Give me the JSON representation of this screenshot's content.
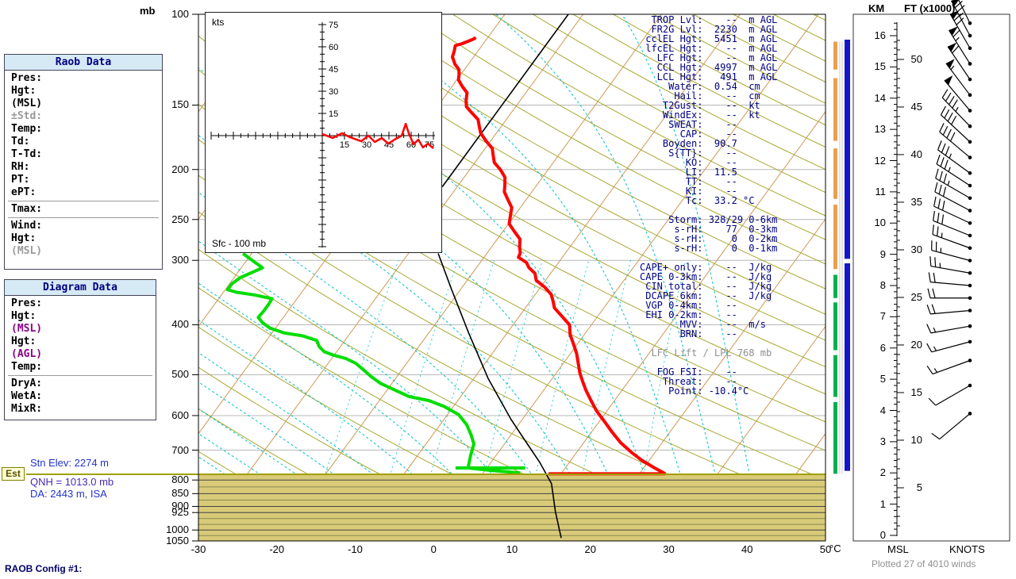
{
  "app": {
    "config_label": "RAOB Config #1:"
  },
  "colors": {
    "temp_trace": "#ff0000",
    "dewpoint_trace": "#00dd00",
    "parcel": "#000000",
    "isotherm": "#cc9955",
    "dry_adiabat": "#a8a832",
    "moist_adiabat": "#00c2c2",
    "grid": "#b8b8b8",
    "ground_fill": "#d8ca78",
    "ground_line_major": "#444444",
    "ground_line_minor": "#8a8a50",
    "surface_line": "#a0a000",
    "strip_orange": "#e8a050",
    "strip_green": "#00b050",
    "strip_blue": "#1515cc"
  },
  "raob_panel": {
    "title": "Raob Data",
    "rows": [
      {
        "label": "Pres:"
      },
      {
        "label": "Hgt:"
      },
      {
        "label": "(MSL)"
      },
      {
        "label": "±Std:",
        "color": "gray"
      },
      {
        "label": "Temp:"
      },
      {
        "label": "Td:"
      },
      {
        "label": "T-Td:"
      },
      {
        "label": "RH:"
      },
      {
        "label": "PT:"
      },
      {
        "label": "ePT:"
      },
      {
        "sep": true
      },
      {
        "label": "Tmax:"
      },
      {
        "sep": true
      },
      {
        "label": "Wind:"
      },
      {
        "label": "Hgt:"
      },
      {
        "label": "(MSL)",
        "color": "gray"
      }
    ]
  },
  "diagram_panel": {
    "title": "Diagram Data",
    "rows": [
      {
        "label": "Pres:"
      },
      {
        "label": "Hgt:"
      },
      {
        "label": "(MSL)",
        "color": "purple"
      },
      {
        "label": "Hgt:"
      },
      {
        "label": "(AGL)",
        "color": "purple"
      },
      {
        "label": "Temp:"
      },
      {
        "sep": true
      },
      {
        "label": "DryA:"
      },
      {
        "label": "WetA:"
      },
      {
        "label": "MixR:"
      }
    ]
  },
  "station_info": {
    "est": "Est",
    "elev": "Stn Elev: 2274 m",
    "qnh": "QNH = 1013.0 mb",
    "da": "DA: 2443 m, ISA"
  },
  "indices": {
    "lines": [
      {
        "t": "  TROP Lvl:    --  m AGL"
      },
      {
        "t": "  FR2G Lvl:  2230  m AGL"
      },
      {
        "t": " cclEL Hgt:  5451  m AGL"
      },
      {
        "t": " lfcEL Hgt:    --  m AGL"
      },
      {
        "t": "   LFC Hgt:    --  m AGL"
      },
      {
        "t": "   CCL Hgt:  4997  m AGL"
      },
      {
        "t": "   LCL Hgt:   491  m AGL"
      },
      {
        "t": "     Water:  0.54  cm"
      },
      {
        "t": "      Hail:    --  cm"
      },
      {
        "t": "    T2Gust:    --  kt"
      },
      {
        "t": "    WindEx:    --  kt"
      },
      {
        "t": "     SWEAT:    --"
      },
      {
        "t": "       CAP:    --"
      },
      {
        "t": "    Boyden:  90.7"
      },
      {
        "t": "     S{TT}:    --"
      },
      {
        "t": "        KO:    --"
      },
      {
        "t": "        LI:  11.5"
      },
      {
        "t": "        TT:    --"
      },
      {
        "t": "        KI:    --"
      },
      {
        "t": "        Tc:  33.2 °C"
      },
      {
        "t": ""
      },
      {
        "t": "     Storm: 328/29 0-6km"
      },
      {
        "t": "      s-rH:    77  0-3km"
      },
      {
        "t": "      s-rH:     0  0-2km"
      },
      {
        "t": "      s-rH:     0  0-1km"
      },
      {
        "t": ""
      },
      {
        "t": "CAPE+ only:    --  J/kg"
      },
      {
        "t": "CAPE 0-3km:    --  J/kg"
      },
      {
        "t": " CIN total:    --  J/kg"
      },
      {
        "t": " DCAPE 6km:    --  J/kg"
      },
      {
        "t": " VGP 0-4km:    --"
      },
      {
        "t": " EHI 0-2km:    --"
      },
      {
        "t": "       MVV:    --  m/s"
      },
      {
        "t": "       BRN:    --"
      },
      {
        "t": ""
      },
      {
        "t": "  LFC Lift / LPL 768 mb",
        "m": 1
      },
      {
        "t": ""
      },
      {
        "t": "   FOG FSI:    --"
      },
      {
        "t": "    Threat:    --"
      },
      {
        "t": "     Point: -10.4°C"
      }
    ]
  },
  "skewt": {
    "pressure_unit": "mb",
    "temp_unit": "°C",
    "pressure_labels": [
      100,
      150,
      200,
      250,
      300,
      400,
      500,
      600,
      700,
      800,
      850,
      900,
      925,
      1000,
      1050
    ],
    "grid_pressures": [
      150,
      200,
      250,
      300,
      400,
      500,
      600,
      700
    ],
    "temp_labels": [
      -30,
      -20,
      -10,
      0,
      10,
      20,
      30,
      40,
      50
    ],
    "surface_pressure": 780,
    "temperature_trace": [
      [
        778,
        23.3
      ],
      [
        758,
        21.4
      ],
      [
        732,
        19.0
      ],
      [
        706,
        16.9
      ],
      [
        677,
        14.7
      ],
      [
        647,
        12.7
      ],
      [
        618,
        10.8
      ],
      [
        588,
        8.7
      ],
      [
        561,
        7.0
      ],
      [
        536,
        5.4
      ],
      [
        516,
        4.2
      ],
      [
        496,
        3.0
      ],
      [
        475,
        1.9
      ],
      [
        455,
        0.8
      ],
      [
        436,
        -0.5
      ],
      [
        418,
        -1.8
      ],
      [
        400,
        -2.8
      ],
      [
        384,
        -4.7
      ],
      [
        371,
        -6.3
      ],
      [
        360,
        -7.1
      ],
      [
        349,
        -8.0
      ],
      [
        338,
        -9.5
      ],
      [
        328,
        -11.2
      ],
      [
        318,
        -12.0
      ],
      [
        310,
        -13.3
      ],
      [
        303,
        -14.1
      ],
      [
        296,
        -15.6
      ],
      [
        290,
        -15.8
      ],
      [
        283,
        -16.4
      ],
      [
        273,
        -17.1
      ],
      [
        264,
        -18.5
      ],
      [
        255,
        -19.9
      ],
      [
        246,
        -20.5
      ],
      [
        237,
        -21.1
      ],
      [
        229,
        -22.3
      ],
      [
        221,
        -23.5
      ],
      [
        214,
        -24.1
      ],
      [
        207,
        -24.8
      ],
      [
        200,
        -26.1
      ],
      [
        194,
        -27.5
      ],
      [
        188,
        -28.3
      ],
      [
        182,
        -29.1
      ],
      [
        176,
        -30.6
      ],
      [
        170,
        -32.0
      ],
      [
        165,
        -32.8
      ],
      [
        160,
        -33.6
      ],
      [
        155,
        -35.1
      ],
      [
        151,
        -36.3
      ],
      [
        147,
        -36.9
      ],
      [
        142,
        -37.5
      ],
      [
        138,
        -38.7
      ],
      [
        134,
        -39.8
      ],
      [
        131,
        -40.2
      ],
      [
        128,
        -40.7
      ],
      [
        125,
        -41.7
      ],
      [
        121,
        -42.7
      ],
      [
        118,
        -43.0
      ],
      [
        115,
        -43.4
      ],
      [
        114,
        -42.7
      ],
      [
        112,
        -41.8
      ],
      [
        111,
        -41.5
      ]
    ],
    "temp_surface_segment": {
      "p": 778,
      "t1": 8.4,
      "t2": 23.3
    },
    "dewpoint_trace": [
      [
        775,
        4.7
      ],
      [
        767,
        0.9
      ],
      [
        758,
        -2.4
      ],
      [
        719,
        -3.2
      ],
      [
        681,
        -3.9
      ],
      [
        654,
        -5.1
      ],
      [
        625,
        -6.6
      ],
      [
        597,
        -8.6
      ],
      [
        576,
        -11.2
      ],
      [
        561,
        -13.7
      ],
      [
        551,
        -16.6
      ],
      [
        536,
        -18.9
      ],
      [
        520,
        -21.4
      ],
      [
        504,
        -23.3
      ],
      [
        489,
        -24.9
      ],
      [
        475,
        -26.5
      ],
      [
        465,
        -28.2
      ],
      [
        458,
        -30.1
      ],
      [
        451,
        -31.6
      ],
      [
        441,
        -32.7
      ],
      [
        429,
        -33.6
      ],
      [
        420,
        -35.9
      ],
      [
        415,
        -38.4
      ],
      [
        406,
        -40.7
      ],
      [
        396,
        -42.2
      ],
      [
        387,
        -43.2
      ],
      [
        376,
        -43.1
      ],
      [
        365,
        -43.1
      ],
      [
        356,
        -43.2
      ],
      [
        350,
        -45.8
      ],
      [
        346,
        -48.3
      ],
      [
        342,
        -49.7
      ],
      [
        333,
        -49.7
      ],
      [
        324,
        -49.2
      ],
      [
        316,
        -48.1
      ],
      [
        310,
        -47.3
      ],
      [
        303,
        -48.7
      ],
      [
        296,
        -50.1
      ],
      [
        291,
        -51.1
      ]
    ],
    "dew_surface_segment": {
      "p": 758,
      "t1": -4.0,
      "t2": 4.9
    },
    "parcel_trace": [
      [
        1036,
        16.0
      ],
      [
        921,
        12.8
      ],
      [
        813,
        9.7
      ],
      [
        739,
        6.2
      ],
      [
        672,
        2.4
      ],
      [
        611,
        -1.4
      ],
      [
        508,
        -8.2
      ],
      [
        415,
        -14.9
      ],
      [
        341,
        -21.2
      ],
      [
        291,
        -26.2
      ]
    ],
    "parcel_upper_segment": [
      [
        216,
        -31.9
      ],
      [
        100,
        -31.9
      ]
    ]
  },
  "hodograph": {
    "unit": "kts",
    "layer": "Sfc - 100 mb",
    "ticks": [
      15,
      30,
      45,
      60,
      75
    ],
    "trace_uv": [
      [
        0,
        1.1
      ],
      [
        7,
        -1.6
      ],
      [
        13.4,
        1.6
      ],
      [
        18.8,
        -1.1
      ],
      [
        26.3,
        -3.8
      ],
      [
        31.1,
        0
      ],
      [
        35.4,
        -4.3
      ],
      [
        40.2,
        -1.6
      ],
      [
        44.5,
        -5.4
      ],
      [
        48.8,
        -2.7
      ],
      [
        53.6,
        0
      ],
      [
        56.3,
        8
      ],
      [
        58.4,
        1.6
      ],
      [
        61.6,
        -5.9
      ],
      [
        64.8,
        -2.7
      ],
      [
        68,
        -8
      ],
      [
        71.3,
        -5.4
      ],
      [
        75,
        -8.6
      ]
    ]
  },
  "strips": {
    "orange": [
      [
        113,
        128
      ],
      [
        133,
        176
      ],
      [
        182,
        228
      ],
      [
        234,
        312
      ]
    ],
    "green": [
      [
        320,
        355
      ],
      [
        362,
        448
      ],
      [
        458,
        552
      ],
      [
        565,
        778
      ]
    ],
    "blue": [
      [
        112,
        298
      ],
      [
        304,
        768
      ]
    ]
  },
  "wind_panel": {
    "km_label": "KM",
    "ft_label": "FT (x1000)",
    "msl_label": "MSL",
    "knots_label": "KNOTS",
    "plotted": "Plotted 27 of 4010 winds",
    "km_ticks": [
      0,
      1,
      2,
      3,
      4,
      5,
      6,
      7,
      8,
      9,
      10,
      11,
      12,
      13,
      14,
      15,
      16
    ],
    "ft_ticks": [
      5,
      10,
      15,
      20,
      25,
      30,
      35,
      40,
      45,
      50
    ],
    "barbs": [
      {
        "km": 3.9,
        "dir": 230,
        "kt": 10
      },
      {
        "km": 4.8,
        "dir": 240,
        "kt": 12
      },
      {
        "km": 5.6,
        "dir": 250,
        "kt": 15
      },
      {
        "km": 6.2,
        "dir": 255,
        "kt": 15
      },
      {
        "km": 6.7,
        "dir": 260,
        "kt": 18
      },
      {
        "km": 7.2,
        "dir": 265,
        "kt": 20
      },
      {
        "km": 7.6,
        "dir": 270,
        "kt": 20
      },
      {
        "km": 8.0,
        "dir": 275,
        "kt": 22
      },
      {
        "km": 8.4,
        "dir": 280,
        "kt": 25
      },
      {
        "km": 8.8,
        "dir": 285,
        "kt": 25
      },
      {
        "km": 9.2,
        "dir": 290,
        "kt": 28
      },
      {
        "km": 9.6,
        "dir": 292,
        "kt": 30
      },
      {
        "km": 10.0,
        "dir": 295,
        "kt": 30
      },
      {
        "km": 10.4,
        "dir": 298,
        "kt": 32
      },
      {
        "km": 10.8,
        "dir": 300,
        "kt": 35
      },
      {
        "km": 11.2,
        "dir": 303,
        "kt": 35
      },
      {
        "km": 11.6,
        "dir": 306,
        "kt": 38
      },
      {
        "km": 12.1,
        "dir": 310,
        "kt": 40
      },
      {
        "km": 12.6,
        "dir": 313,
        "kt": 42
      },
      {
        "km": 13.1,
        "dir": 316,
        "kt": 45
      },
      {
        "km": 13.6,
        "dir": 320,
        "kt": 50
      },
      {
        "km": 14.1,
        "dir": 323,
        "kt": 55
      },
      {
        "km": 14.6,
        "dir": 326,
        "kt": 60
      },
      {
        "km": 15.1,
        "dir": 328,
        "kt": 65
      },
      {
        "km": 15.6,
        "dir": 330,
        "kt": 70
      },
      {
        "km": 16.0,
        "dir": 332,
        "kt": 75
      },
      {
        "km": 16.4,
        "dir": 334,
        "kt": 70
      }
    ]
  }
}
